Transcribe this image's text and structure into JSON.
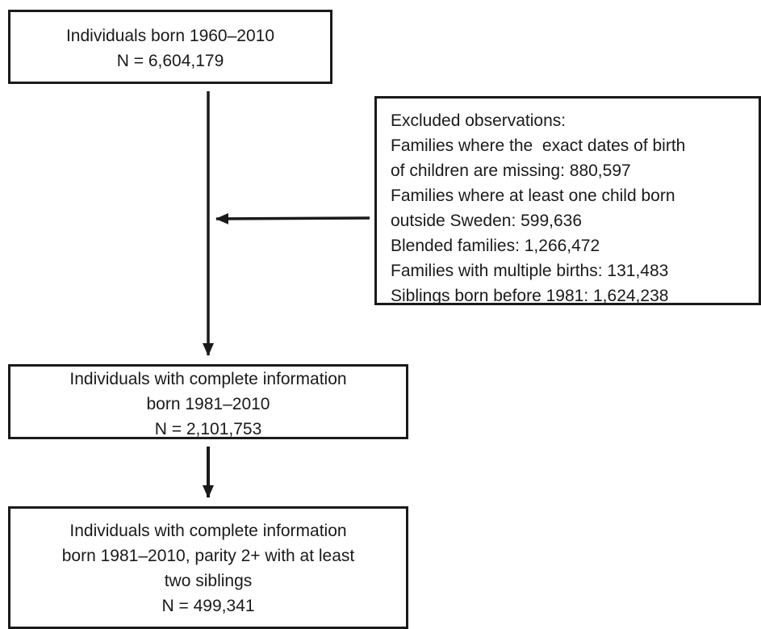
{
  "nodes": [
    {
      "lines": [
        "Individuals born 1960–2010",
        "N = 6,604,179"
      ]
    },
    {
      "lines": [
        "Excluded observations:",
        "Families where the  exact dates of birth",
        "of children are missing: 880,597",
        "Families where at least one child born",
        "outside Sweden: 599,636",
        "Blended families: 1,266,472",
        "Families with multiple births: 131,483",
        "Siblings born before 1981: 1,624,238"
      ]
    },
    {
      "lines": [
        "Individuals with complete information",
        "born 1981–2010",
        "N = 2,101,753"
      ]
    },
    {
      "lines": [
        "Individuals with complete information",
        "born 1981–2010, parity 2+ with at least",
        "two siblings",
        "N = 499,341"
      ]
    }
  ]
}
